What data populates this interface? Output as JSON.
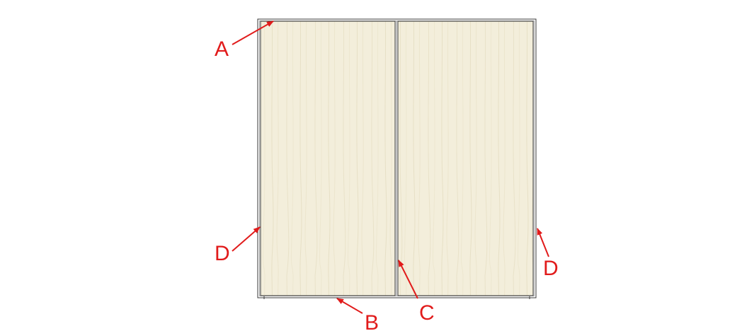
{
  "diagram": {
    "colors": {
      "panel_fill": "#f3eedb",
      "frame_line": "#3a3a3a",
      "callout": "#e11b1b"
    },
    "callouts": [
      {
        "id": "A",
        "label": "A"
      },
      {
        "id": "B",
        "label": "B"
      },
      {
        "id": "C",
        "label": "C"
      },
      {
        "id": "D-left",
        "label": "D"
      },
      {
        "id": "D-right",
        "label": "D"
      }
    ]
  }
}
